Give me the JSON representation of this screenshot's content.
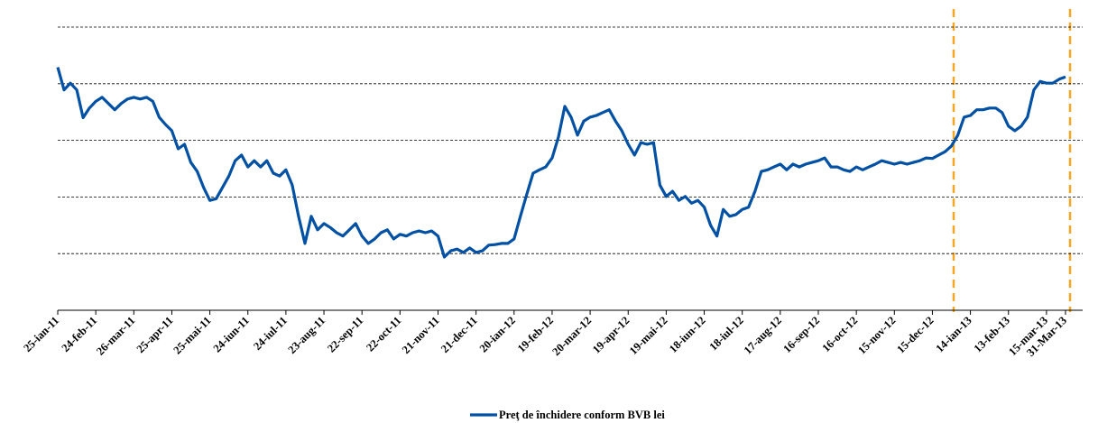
{
  "chart_data": {
    "type": "line",
    "categories": [
      "25-ian-11",
      null,
      null,
      null,
      null,
      null,
      "24-feb-11",
      null,
      null,
      null,
      null,
      null,
      "26-mar-11",
      null,
      null,
      null,
      null,
      null,
      "25-apr-11",
      null,
      null,
      null,
      null,
      null,
      "25-mai-11",
      null,
      null,
      null,
      null,
      null,
      "24-iun-11",
      null,
      null,
      null,
      null,
      null,
      "24-iul-11",
      null,
      null,
      null,
      null,
      null,
      "23-aug-11",
      null,
      null,
      null,
      null,
      null,
      "22-sep-11",
      null,
      null,
      null,
      null,
      null,
      "22-oct-11",
      null,
      null,
      null,
      null,
      null,
      "21-nov-11",
      null,
      null,
      null,
      null,
      null,
      "21-dec-11",
      null,
      null,
      null,
      null,
      null,
      "20-ian-12",
      null,
      null,
      null,
      null,
      null,
      "19-feb-12",
      null,
      null,
      null,
      null,
      null,
      "20-mar-12",
      null,
      null,
      null,
      null,
      null,
      "19-apr-12",
      null,
      null,
      null,
      null,
      null,
      "19-mai-12",
      null,
      null,
      null,
      null,
      null,
      "18-iun-12",
      null,
      null,
      null,
      null,
      null,
      "18-iul-12",
      null,
      null,
      null,
      null,
      null,
      "17-aug-12",
      null,
      null,
      null,
      null,
      null,
      "16-sep-12",
      null,
      null,
      null,
      null,
      null,
      "16-oct-12",
      null,
      null,
      null,
      null,
      null,
      "15-nov-12",
      null,
      null,
      null,
      null,
      null,
      "15-dec-12",
      null,
      null,
      null,
      null,
      null,
      "14-ian-13",
      null,
      null,
      null,
      null,
      null,
      "13-feb-13",
      null,
      null,
      null,
      null,
      null,
      "15-mar-13",
      null,
      null,
      "31-Mar-13"
    ],
    "series": [
      {
        "name": "Preţ de închidere conform BVB lei",
        "color": "#0050a4",
        "values": [
          4.29,
          3.89,
          4.01,
          3.89,
          3.4,
          3.57,
          3.69,
          3.76,
          3.65,
          3.54,
          3.65,
          3.73,
          3.76,
          3.73,
          3.76,
          3.69,
          3.41,
          3.28,
          3.17,
          2.85,
          2.93,
          2.61,
          2.45,
          2.17,
          1.94,
          1.97,
          2.17,
          2.37,
          2.64,
          2.74,
          2.53,
          2.64,
          2.53,
          2.64,
          2.42,
          2.37,
          2.48,
          2.21,
          1.66,
          1.18,
          1.66,
          1.42,
          1.53,
          1.46,
          1.37,
          1.31,
          1.42,
          1.53,
          1.31,
          1.18,
          1.26,
          1.37,
          1.42,
          1.26,
          1.34,
          1.31,
          1.37,
          1.4,
          1.37,
          1.4,
          1.31,
          0.94,
          1.05,
          1.08,
          1.02,
          1.1,
          1.02,
          1.05,
          1.15,
          1.16,
          1.18,
          1.18,
          1.26,
          1.66,
          2.05,
          2.42,
          2.48,
          2.53,
          2.69,
          3.06,
          3.6,
          3.41,
          3.09,
          3.34,
          3.41,
          3.44,
          3.49,
          3.54,
          3.34,
          3.17,
          2.93,
          2.74,
          2.96,
          2.93,
          2.96,
          2.21,
          2.01,
          2.1,
          1.94,
          2.01,
          1.89,
          1.94,
          1.82,
          1.5,
          1.31,
          1.78,
          1.66,
          1.69,
          1.78,
          1.82,
          2.1,
          2.45,
          2.48,
          2.53,
          2.58,
          2.48,
          2.58,
          2.53,
          2.58,
          2.61,
          2.64,
          2.69,
          2.53,
          2.53,
          2.48,
          2.45,
          2.53,
          2.48,
          2.53,
          2.58,
          2.64,
          2.61,
          2.58,
          2.61,
          2.58,
          2.61,
          2.64,
          2.69,
          2.68,
          2.74,
          2.8,
          2.9,
          3.09,
          3.41,
          3.44,
          3.54,
          3.54,
          3.57,
          3.57,
          3.49,
          3.25,
          3.17,
          3.25,
          3.41,
          3.89,
          4.04,
          4.01,
          4.01,
          4.08,
          4.12
        ]
      }
    ],
    "ylim": [
      0,
      5
    ],
    "gridlines": [
      1,
      2,
      3,
      4,
      5
    ],
    "legend": "bottom"
  }
}
